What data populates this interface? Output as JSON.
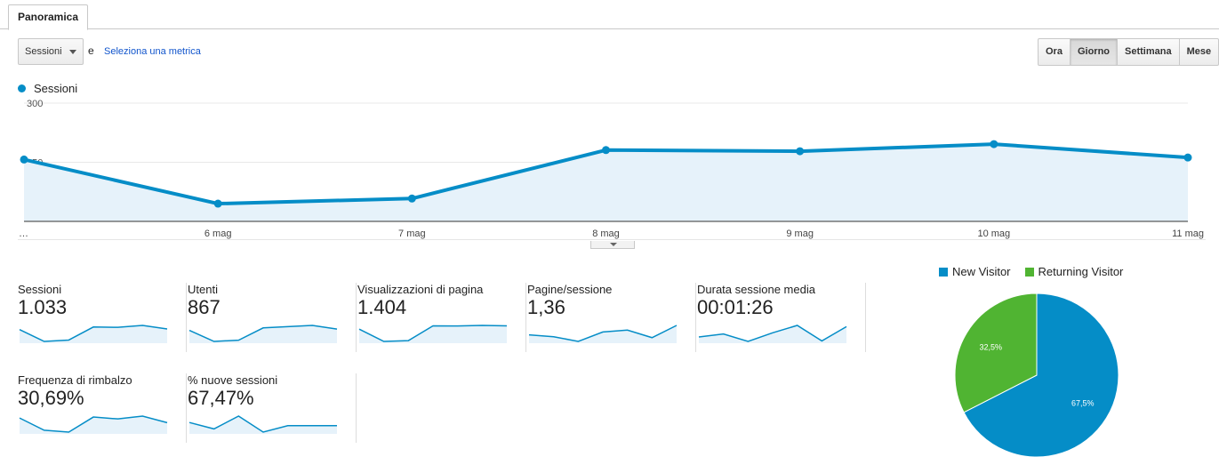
{
  "tabs": [
    {
      "label": "Panoramica",
      "active": true
    }
  ],
  "metric_selector": {
    "selected": "Sessioni",
    "conjunction": "e",
    "secondary_link": "Seleziona una metrica"
  },
  "time_range": {
    "options": [
      "Ora",
      "Giorno",
      "Settimana",
      "Mese"
    ],
    "selected": "Giorno"
  },
  "legend": {
    "label": "Sessioni"
  },
  "colors": {
    "primary": "#058dc7",
    "area": "#e6f2fa",
    "returning": "#50b432",
    "link": "#1155cc"
  },
  "chart_data": [
    {
      "type": "area",
      "series": [
        {
          "name": "Sessioni",
          "values": [
            157,
            45,
            58,
            181,
            178,
            196,
            162
          ]
        }
      ],
      "categories": [
        "…",
        "6 mag",
        "7 mag",
        "8 mag",
        "9 mag",
        "10 mag",
        "11 mag"
      ],
      "yticks": [
        300,
        150
      ],
      "ylim": [
        0,
        300
      ],
      "grid": true
    },
    {
      "type": "pie",
      "categories": [
        "New Visitor",
        "Returning Visitor"
      ],
      "values": [
        67.5,
        32.5
      ],
      "labels": [
        "67,5%",
        "32,5%"
      ],
      "legend_position": "top"
    }
  ],
  "kpis": [
    {
      "label": "Sessioni",
      "value": "1.033",
      "spark": [
        157,
        45,
        58,
        181,
        178,
        196,
        162
      ]
    },
    {
      "label": "Utenti",
      "value": "867",
      "spark": [
        130,
        40,
        50,
        150,
        160,
        170,
        140
      ]
    },
    {
      "label": "Visualizzazioni di pagina",
      "value": "1.404",
      "spark": [
        210,
        60,
        70,
        250,
        248,
        255,
        250
      ]
    },
    {
      "label": "Pagine/sessione",
      "value": "1,36",
      "spark": [
        1.35,
        1.33,
        1.28,
        1.38,
        1.4,
        1.32,
        1.45
      ]
    },
    {
      "label": "Durata sessione media",
      "value": "00:01:26",
      "spark": [
        78,
        90,
        60,
        95,
        125,
        62,
        120
      ]
    },
    {
      "label": "Frequenza di rimbalzo",
      "value": "30,69%",
      "spark": [
        31,
        18,
        16,
        32,
        30,
        33,
        26
      ]
    },
    {
      "label": "% nuove sessioni",
      "value": "67,47%",
      "spark": [
        68,
        66,
        70,
        65,
        67,
        67,
        67
      ]
    }
  ]
}
